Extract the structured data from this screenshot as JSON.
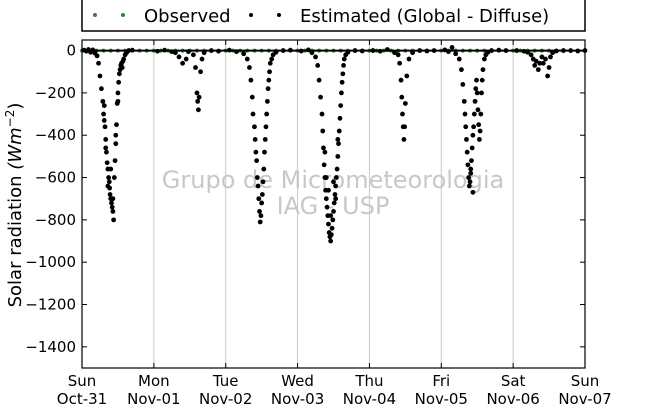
{
  "chart_data": {
    "type": "scatter",
    "title": "",
    "xlabel": "",
    "ylabel": "Solar radiation (Wm⁻²)",
    "ylabel_main": "Solar radiation ",
    "ylabel_unit": "(Wm",
    "ylabel_exp": "−2",
    "ylabel_close": ")",
    "ylim": [
      -1500,
      50
    ],
    "yticks": [
      0,
      -200,
      -400,
      -600,
      -800,
      -1000,
      -1200,
      -1400
    ],
    "ytick_labels": [
      "0",
      "−200",
      "−400",
      "−600",
      "−800",
      "−1000",
      "−1200",
      "−1400"
    ],
    "xlim": [
      0,
      7
    ],
    "xticks": [
      0,
      1,
      2,
      3,
      4,
      5,
      6,
      7
    ],
    "xtick_labels": [
      {
        "day": "Sun",
        "date": "Oct-31"
      },
      {
        "day": "Mon",
        "date": "Nov-01"
      },
      {
        "day": "Tue",
        "date": "Nov-02"
      },
      {
        "day": "Wed",
        "date": "Nov-03"
      },
      {
        "day": "Thu",
        "date": "Nov-04"
      },
      {
        "day": "Fri",
        "date": "Nov-05"
      },
      {
        "day": "Sat",
        "date": "Nov-06"
      },
      {
        "day": "Sun",
        "date": "Nov-07"
      }
    ],
    "grid": "vertical",
    "legend": {
      "placement": "top",
      "entries": [
        {
          "name": "Observed",
          "color": "#2a8a2a"
        },
        {
          "name": "Estimated (Global - Diffuse)",
          "color": "#000000"
        }
      ]
    },
    "watermark": [
      "Grupo de Micrometeorologia",
      "IAG - USP"
    ],
    "series": [
      {
        "name": "Observed",
        "color": "#2a8a2a",
        "points": [
          [
            0.0,
            0
          ],
          [
            0.1,
            0
          ],
          [
            0.2,
            0
          ],
          [
            0.3,
            0
          ],
          [
            0.4,
            0
          ],
          [
            0.5,
            0
          ],
          [
            0.6,
            0
          ],
          [
            0.7,
            0
          ],
          [
            0.8,
            0
          ],
          [
            0.9,
            0
          ],
          [
            1.0,
            0
          ],
          [
            1.1,
            0
          ],
          [
            1.2,
            0
          ],
          [
            1.3,
            0
          ],
          [
            1.4,
            0
          ],
          [
            1.5,
            0
          ],
          [
            1.6,
            0
          ],
          [
            1.7,
            0
          ],
          [
            1.8,
            0
          ],
          [
            1.9,
            0
          ],
          [
            2.0,
            0
          ],
          [
            2.1,
            0
          ],
          [
            2.2,
            0
          ],
          [
            2.3,
            0
          ],
          [
            2.4,
            0
          ],
          [
            2.5,
            0
          ],
          [
            2.6,
            0
          ],
          [
            2.7,
            0
          ],
          [
            2.8,
            0
          ],
          [
            2.9,
            0
          ],
          [
            3.0,
            0
          ],
          [
            3.1,
            0
          ],
          [
            3.2,
            0
          ],
          [
            3.3,
            0
          ],
          [
            3.4,
            0
          ],
          [
            3.5,
            0
          ],
          [
            3.6,
            0
          ],
          [
            3.7,
            0
          ],
          [
            3.8,
            0
          ],
          [
            3.9,
            0
          ],
          [
            4.0,
            0
          ],
          [
            4.1,
            0
          ],
          [
            4.2,
            0
          ],
          [
            4.3,
            0
          ],
          [
            4.4,
            0
          ],
          [
            4.5,
            0
          ],
          [
            4.6,
            0
          ],
          [
            4.7,
            0
          ],
          [
            4.8,
            0
          ],
          [
            4.9,
            0
          ],
          [
            5.0,
            0
          ],
          [
            5.1,
            0
          ],
          [
            5.2,
            0
          ],
          [
            5.3,
            0
          ],
          [
            5.4,
            0
          ],
          [
            5.5,
            0
          ],
          [
            5.6,
            0
          ],
          [
            5.7,
            0
          ],
          [
            5.8,
            0
          ],
          [
            5.9,
            0
          ],
          [
            6.0,
            0
          ],
          [
            6.1,
            0
          ],
          [
            6.2,
            0
          ],
          [
            6.3,
            0
          ],
          [
            6.4,
            0
          ],
          [
            6.5,
            0
          ],
          [
            6.6,
            0
          ],
          [
            6.7,
            0
          ],
          [
            6.8,
            0
          ],
          [
            6.9,
            0
          ],
          [
            7.0,
            0
          ]
        ]
      },
      {
        "name": "Estimated (Global - Diffuse)",
        "color": "#000000",
        "points": [
          [
            0.03,
            2
          ],
          [
            0.06,
            -3
          ],
          [
            0.09,
            5
          ],
          [
            0.12,
            -8
          ],
          [
            0.15,
            3
          ],
          [
            0.18,
            -12
          ],
          [
            0.21,
            -25
          ],
          [
            0.23,
            -60
          ],
          [
            0.25,
            -120
          ],
          [
            0.27,
            -180
          ],
          [
            0.29,
            -240
          ],
          [
            0.3,
            -300
          ],
          [
            0.31,
            -260
          ],
          [
            0.32,
            -360
          ],
          [
            0.33,
            -420
          ],
          [
            0.34,
            -480
          ],
          [
            0.35,
            -530
          ],
          [
            0.36,
            -560
          ],
          [
            0.37,
            -600
          ],
          [
            0.38,
            -620
          ],
          [
            0.385,
            -650
          ],
          [
            0.39,
            -680
          ],
          [
            0.4,
            -700
          ],
          [
            0.41,
            -720
          ],
          [
            0.42,
            -740
          ],
          [
            0.43,
            -760
          ],
          [
            0.44,
            -800
          ],
          [
            0.45,
            -600
          ],
          [
            0.46,
            -520
          ],
          [
            0.47,
            -400
          ],
          [
            0.48,
            -350
          ],
          [
            0.49,
            -250
          ],
          [
            0.5,
            -200
          ],
          [
            0.51,
            -150
          ],
          [
            0.52,
            -110
          ],
          [
            0.53,
            -90
          ],
          [
            0.54,
            -70
          ],
          [
            0.55,
            -60
          ],
          [
            0.56,
            -80
          ],
          [
            0.57,
            -50
          ],
          [
            0.58,
            -40
          ],
          [
            0.6,
            -20
          ],
          [
            0.62,
            -10
          ],
          [
            0.65,
            0
          ],
          [
            0.7,
            2
          ],
          [
            0.4,
            -560
          ],
          [
            0.36,
            -640
          ],
          [
            0.33,
            -460
          ],
          [
            0.31,
            -330
          ],
          [
            0.43,
            -700
          ],
          [
            0.47,
            -440
          ],
          [
            0.5,
            -240
          ],
          [
            1.05,
            -3
          ],
          [
            1.15,
            2
          ],
          [
            1.25,
            -5
          ],
          [
            1.3,
            -10
          ],
          [
            1.35,
            -30
          ],
          [
            1.4,
            -60
          ],
          [
            1.45,
            -40
          ],
          [
            1.48,
            -5
          ],
          [
            1.55,
            -20
          ],
          [
            1.58,
            -80
          ],
          [
            1.6,
            -200
          ],
          [
            1.61,
            -240
          ],
          [
            1.62,
            -280
          ],
          [
            1.63,
            -220
          ],
          [
            1.65,
            -100
          ],
          [
            1.67,
            -40
          ],
          [
            1.7,
            -10
          ],
          [
            1.8,
            0
          ],
          [
            1.9,
            -3
          ],
          [
            2.05,
            2
          ],
          [
            2.15,
            -5
          ],
          [
            2.25,
            -15
          ],
          [
            2.3,
            -40
          ],
          [
            2.33,
            -80
          ],
          [
            2.35,
            -140
          ],
          [
            2.37,
            -220
          ],
          [
            2.38,
            -300
          ],
          [
            2.4,
            -360
          ],
          [
            2.41,
            -420
          ],
          [
            2.42,
            -480
          ],
          [
            2.43,
            -520
          ],
          [
            2.44,
            -600
          ],
          [
            2.45,
            -640
          ],
          [
            2.46,
            -700
          ],
          [
            2.47,
            -760
          ],
          [
            2.48,
            -810
          ],
          [
            2.49,
            -780
          ],
          [
            2.5,
            -720
          ],
          [
            2.51,
            -680
          ],
          [
            2.52,
            -620
          ],
          [
            2.53,
            -560
          ],
          [
            2.54,
            -480
          ],
          [
            2.55,
            -420
          ],
          [
            2.56,
            -360
          ],
          [
            2.57,
            -300
          ],
          [
            2.58,
            -240
          ],
          [
            2.59,
            -180
          ],
          [
            2.6,
            -140
          ],
          [
            2.61,
            -100
          ],
          [
            2.62,
            -60
          ],
          [
            2.64,
            -40
          ],
          [
            2.66,
            -20
          ],
          [
            2.7,
            -8
          ],
          [
            2.8,
            0
          ],
          [
            2.9,
            2
          ],
          [
            3.05,
            -2
          ],
          [
            3.15,
            3
          ],
          [
            3.2,
            -10
          ],
          [
            3.25,
            -30
          ],
          [
            3.28,
            -70
          ],
          [
            3.3,
            -140
          ],
          [
            3.32,
            -220
          ],
          [
            3.34,
            -300
          ],
          [
            3.35,
            -380
          ],
          [
            3.36,
            -460
          ],
          [
            3.37,
            -540
          ],
          [
            3.38,
            -600
          ],
          [
            3.39,
            -660
          ],
          [
            3.4,
            -700
          ],
          [
            3.41,
            -740
          ],
          [
            3.42,
            -780
          ],
          [
            3.43,
            -820
          ],
          [
            3.44,
            -860
          ],
          [
            3.45,
            -880
          ],
          [
            3.46,
            -900
          ],
          [
            3.47,
            -870
          ],
          [
            3.48,
            -840
          ],
          [
            3.49,
            -800
          ],
          [
            3.5,
            -760
          ],
          [
            3.51,
            -720
          ],
          [
            3.52,
            -680
          ],
          [
            3.53,
            -640
          ],
          [
            3.54,
            -600
          ],
          [
            3.55,
            -560
          ],
          [
            3.56,
            -500
          ],
          [
            3.57,
            -440
          ],
          [
            3.58,
            -380
          ],
          [
            3.59,
            -320
          ],
          [
            3.6,
            -260
          ],
          [
            3.61,
            -200
          ],
          [
            3.62,
            -150
          ],
          [
            3.63,
            -110
          ],
          [
            3.64,
            -70
          ],
          [
            3.65,
            -40
          ],
          [
            3.67,
            -20
          ],
          [
            3.7,
            -8
          ],
          [
            3.8,
            0
          ],
          [
            3.9,
            -2
          ],
          [
            3.43,
            -660
          ],
          [
            3.46,
            -780
          ],
          [
            3.5,
            -620
          ],
          [
            3.53,
            -700
          ],
          [
            3.4,
            -600
          ],
          [
            3.38,
            -480
          ],
          [
            3.56,
            -420
          ],
          [
            4.05,
            0
          ],
          [
            4.15,
            -3
          ],
          [
            4.25,
            5
          ],
          [
            4.35,
            -10
          ],
          [
            4.4,
            -20
          ],
          [
            4.42,
            -60
          ],
          [
            4.44,
            -140
          ],
          [
            4.45,
            -220
          ],
          [
            4.46,
            -300
          ],
          [
            4.47,
            -360
          ],
          [
            4.48,
            -420
          ],
          [
            4.49,
            -360
          ],
          [
            4.5,
            -250
          ],
          [
            4.52,
            -120
          ],
          [
            4.55,
            -40
          ],
          [
            4.6,
            -10
          ],
          [
            4.7,
            0
          ],
          [
            4.8,
            -2
          ],
          [
            4.9,
            0
          ],
          [
            5.05,
            3
          ],
          [
            5.1,
            -5
          ],
          [
            5.15,
            15
          ],
          [
            5.2,
            -15
          ],
          [
            5.25,
            -40
          ],
          [
            5.28,
            -90
          ],
          [
            5.3,
            -160
          ],
          [
            5.32,
            -240
          ],
          [
            5.33,
            -300
          ],
          [
            5.34,
            -360
          ],
          [
            5.35,
            -420
          ],
          [
            5.36,
            -480
          ],
          [
            5.37,
            -540
          ],
          [
            5.38,
            -600
          ],
          [
            5.39,
            -640
          ],
          [
            5.4,
            -620
          ],
          [
            5.41,
            -580
          ],
          [
            5.42,
            -520
          ],
          [
            5.43,
            -460
          ],
          [
            5.44,
            -400
          ],
          [
            5.45,
            -360
          ],
          [
            5.46,
            -300
          ],
          [
            5.47,
            -240
          ],
          [
            5.48,
            -180
          ],
          [
            5.49,
            -140
          ],
          [
            5.5,
            -200
          ],
          [
            5.51,
            -280
          ],
          [
            5.52,
            -350
          ],
          [
            5.53,
            -420
          ],
          [
            5.54,
            -380
          ],
          [
            5.55,
            -300
          ],
          [
            5.56,
            -200
          ],
          [
            5.57,
            -140
          ],
          [
            5.58,
            -90
          ],
          [
            5.6,
            -40
          ],
          [
            5.62,
            -20
          ],
          [
            5.65,
            -8
          ],
          [
            5.7,
            0
          ],
          [
            5.8,
            2
          ],
          [
            5.9,
            0
          ],
          [
            5.44,
            -670
          ],
          [
            5.41,
            -560
          ],
          [
            6.05,
            0
          ],
          [
            6.15,
            -3
          ],
          [
            6.2,
            -8
          ],
          [
            6.25,
            -20
          ],
          [
            6.28,
            -40
          ],
          [
            6.3,
            -70
          ],
          [
            6.32,
            -50
          ],
          [
            6.35,
            -90
          ],
          [
            6.37,
            -60
          ],
          [
            6.4,
            -30
          ],
          [
            6.42,
            -60
          ],
          [
            6.45,
            -40
          ],
          [
            6.48,
            -120
          ],
          [
            6.5,
            -80
          ],
          [
            6.52,
            -30
          ],
          [
            6.55,
            -10
          ],
          [
            6.6,
            -2
          ],
          [
            6.7,
            0
          ],
          [
            6.8,
            0
          ],
          [
            6.9,
            -2
          ],
          [
            7.0,
            0
          ]
        ]
      }
    ]
  }
}
